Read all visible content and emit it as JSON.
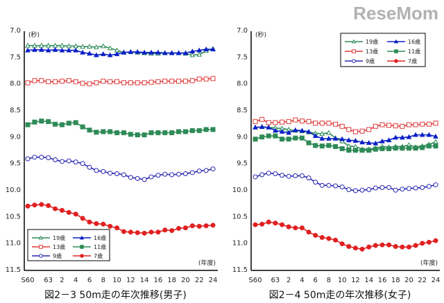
{
  "chart_data": [
    {
      "type": "line",
      "title": "図2－3 50m走の年次推移(男子)",
      "ylabel": "(秒)",
      "xlabel": "(年度)",
      "ylim": [
        7.0,
        11.5
      ],
      "y_inverted": true,
      "yticks": [
        "7.0",
        "7.5",
        "8.0",
        "8.5",
        "9.0",
        "9.5",
        "10.0",
        "10.5",
        "11.0",
        "11.5"
      ],
      "xtick_labels": [
        "S60",
        "63",
        "2",
        "4",
        "6",
        "8",
        "10",
        "12",
        "14",
        "16",
        "18",
        "20",
        "22",
        "24"
      ],
      "legend_placement": "bottom-left",
      "series": [
        {
          "name": "19歳",
          "color": "#2e8b57",
          "marker": "triangle-open",
          "values": [
            7.27,
            7.27,
            7.27,
            7.27,
            7.27,
            7.27,
            7.28,
            7.28,
            7.29,
            7.29,
            7.3,
            7.28,
            7.32,
            7.36,
            7.4,
            7.39,
            7.4,
            7.41,
            7.42,
            7.42,
            7.41,
            7.41,
            7.41,
            7.42,
            7.45,
            7.44,
            7.37,
            7.33
          ]
        },
        {
          "name": "16歳",
          "color": "#0a1fc8",
          "marker": "triangle-filled",
          "values": [
            7.36,
            7.35,
            7.35,
            7.36,
            7.35,
            7.36,
            7.36,
            7.36,
            7.4,
            7.42,
            7.45,
            7.43,
            7.45,
            7.43,
            7.4,
            7.39,
            7.39,
            7.4,
            7.4,
            7.4,
            7.41,
            7.41,
            7.41,
            7.41,
            7.38,
            7.36,
            7.34,
            7.34
          ]
        },
        {
          "name": "13歳",
          "color": "#e03a3a",
          "marker": "square-open",
          "values": [
            7.97,
            7.93,
            7.93,
            7.95,
            7.95,
            7.94,
            7.93,
            7.95,
            7.98,
            7.99,
            7.97,
            7.94,
            7.95,
            7.95,
            7.97,
            7.97,
            7.97,
            7.97,
            7.96,
            7.95,
            7.94,
            7.94,
            7.94,
            7.94,
            7.93,
            7.9,
            7.9,
            7.89
          ]
        },
        {
          "name": "11歳",
          "color": "#2e8b57",
          "marker": "square-filled",
          "values": [
            8.76,
            8.71,
            8.69,
            8.7,
            8.75,
            8.76,
            8.73,
            8.72,
            8.8,
            8.86,
            8.9,
            8.89,
            8.89,
            8.91,
            8.91,
            8.94,
            8.95,
            8.95,
            8.91,
            8.91,
            8.91,
            8.91,
            8.89,
            8.89,
            8.87,
            8.87,
            8.85,
            8.85
          ]
        },
        {
          "name": "9歳",
          "color": "#2626b0",
          "marker": "circle-open",
          "values": [
            9.4,
            9.37,
            9.37,
            9.38,
            9.42,
            9.45,
            9.44,
            9.46,
            9.49,
            9.56,
            9.62,
            9.64,
            9.67,
            9.68,
            9.7,
            9.75,
            9.77,
            9.79,
            9.74,
            9.71,
            9.69,
            9.7,
            9.69,
            9.68,
            9.66,
            9.63,
            9.62,
            9.59
          ]
        },
        {
          "name": "7歳",
          "color": "#e02020",
          "marker": "circle-filled",
          "values": [
            10.29,
            10.27,
            10.26,
            10.28,
            10.34,
            10.37,
            10.41,
            10.44,
            10.52,
            10.59,
            10.62,
            10.63,
            10.67,
            10.7,
            10.77,
            10.78,
            10.79,
            10.8,
            10.78,
            10.78,
            10.74,
            10.75,
            10.71,
            10.7,
            10.66,
            10.67,
            10.66,
            10.65
          ]
        }
      ]
    },
    {
      "type": "line",
      "title": "図2－4 50m走の年次推移(女子)",
      "ylabel": "(秒)",
      "xlabel": "(年度)",
      "ylim": [
        7.0,
        11.5
      ],
      "y_inverted": true,
      "yticks": [
        "7.0",
        "7.5",
        "8.0",
        "8.5",
        "9.0",
        "9.5",
        "10.0",
        "10.5",
        "11.0",
        "11.5"
      ],
      "xtick_labels": [
        "S60",
        "63",
        "2",
        "4",
        "6",
        "8",
        "10",
        "12",
        "14",
        "16",
        "18",
        "20",
        "22",
        "24"
      ],
      "legend_placement": "top-right",
      "series": [
        {
          "name": "19歳",
          "color": "#2e8b57",
          "marker": "triangle-open",
          "values": [
            8.81,
            8.8,
            8.81,
            8.82,
            8.83,
            8.85,
            8.87,
            8.88,
            8.9,
            8.92,
            8.93,
            8.91,
            9.01,
            9.07,
            9.16,
            9.17,
            9.22,
            9.22,
            9.2,
            9.17,
            9.18,
            9.17,
            9.17,
            9.14,
            9.18,
            9.16,
            9.13,
            9.08
          ]
        },
        {
          "name": "16歳",
          "color": "#0a1fc8",
          "marker": "triangle-filled",
          "values": [
            8.81,
            8.8,
            8.81,
            8.87,
            8.89,
            8.91,
            8.86,
            8.87,
            8.89,
            8.97,
            9.02,
            9.02,
            9.02,
            9.03,
            9.05,
            9.06,
            9.09,
            9.1,
            9.11,
            9.07,
            9.05,
            9.0,
            9.0,
            8.99,
            8.95,
            8.95,
            8.95,
            8.98
          ]
        },
        {
          "name": "13歳",
          "color": "#e03a3a",
          "marker": "square-open",
          "values": [
            8.7,
            8.66,
            8.72,
            8.72,
            8.71,
            8.7,
            8.67,
            8.69,
            8.7,
            8.73,
            8.73,
            8.73,
            8.75,
            8.79,
            8.85,
            8.89,
            8.88,
            8.85,
            8.79,
            8.76,
            8.77,
            8.78,
            8.79,
            8.76,
            8.76,
            8.75,
            8.75,
            8.73
          ]
        },
        {
          "name": "11歳",
          "color": "#2e8b57",
          "marker": "square-filled",
          "values": [
            9.03,
            8.99,
            8.97,
            8.97,
            9.03,
            9.03,
            9.01,
            9.01,
            9.1,
            9.15,
            9.16,
            9.15,
            9.17,
            9.21,
            9.24,
            9.24,
            9.24,
            9.24,
            9.22,
            9.21,
            9.21,
            9.2,
            9.2,
            9.2,
            9.2,
            9.19,
            9.16,
            9.16
          ]
        },
        {
          "name": "9歳",
          "color": "#2626b0",
          "marker": "circle-open",
          "values": [
            9.74,
            9.7,
            9.67,
            9.68,
            9.71,
            9.73,
            9.72,
            9.72,
            9.76,
            9.84,
            9.9,
            9.9,
            9.91,
            9.93,
            9.98,
            10.0,
            9.99,
            9.98,
            9.95,
            9.94,
            9.94,
            9.99,
            9.97,
            9.96,
            9.95,
            9.94,
            9.92,
            9.89
          ]
        },
        {
          "name": "7歳",
          "color": "#e02020",
          "marker": "circle-filled",
          "values": [
            10.64,
            10.63,
            10.59,
            10.61,
            10.64,
            10.68,
            10.7,
            10.7,
            10.78,
            10.84,
            10.88,
            10.9,
            10.93,
            11.0,
            11.05,
            11.08,
            11.1,
            11.06,
            11.03,
            11.02,
            11.02,
            11.05,
            11.06,
            11.06,
            11.03,
            10.99,
            10.97,
            10.94
          ]
        }
      ]
    }
  ],
  "watermark": "ReseMom"
}
